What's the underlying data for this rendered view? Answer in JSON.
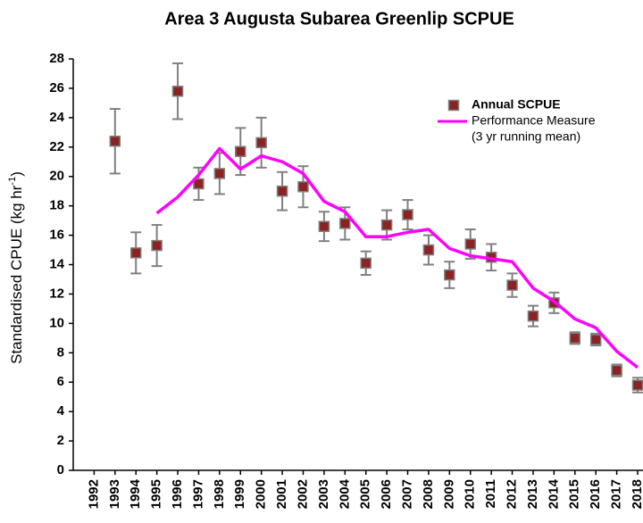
{
  "chart_data": {
    "type": "scatter",
    "title": "Area 3 Augusta Subarea Greenlip SCPUE",
    "y_label": [
      "Standardised CPUE (kg hr",
      "-1",
      ")"
    ],
    "x": [
      1992,
      1993,
      1994,
      1995,
      1996,
      1997,
      1998,
      1999,
      2000,
      2001,
      2002,
      2003,
      2004,
      2005,
      2006,
      2007,
      2008,
      2009,
      2010,
      2011,
      2012,
      2013,
      2014,
      2015,
      2016,
      2017,
      2018
    ],
    "series": [
      {
        "name": "Annual SCPUE",
        "color": "#8b2323",
        "values": [
          null,
          22.4,
          14.8,
          15.3,
          25.8,
          19.5,
          20.2,
          21.7,
          22.3,
          19.0,
          19.3,
          16.6,
          16.8,
          14.1,
          16.7,
          17.4,
          15.0,
          13.3,
          15.4,
          14.5,
          12.6,
          10.5,
          11.4,
          9.0,
          8.9,
          6.8,
          5.8
        ],
        "errors": [
          null,
          2.2,
          1.4,
          1.4,
          1.9,
          1.1,
          1.4,
          1.6,
          1.7,
          1.3,
          1.4,
          1.0,
          1.1,
          0.8,
          1.0,
          1.0,
          1.0,
          0.9,
          1.0,
          0.9,
          0.8,
          0.7,
          0.7,
          0.4,
          0.4,
          0.4,
          0.5
        ],
        "error_color": "#808080"
      },
      {
        "name": "Performance Measure",
        "color": "#ff00ff",
        "style": "line",
        "values": [
          null,
          null,
          null,
          17.5,
          18.6,
          20.1,
          21.9,
          20.5,
          21.4,
          21.0,
          20.2,
          18.3,
          17.6,
          15.9,
          15.9,
          16.2,
          16.4,
          15.1,
          14.6,
          14.4,
          14.2,
          12.4,
          11.5,
          10.3,
          9.7,
          8.1,
          7.0
        ]
      }
    ],
    "legend_note": "(3 yr running mean)",
    "xlim": [
      1991,
      2018
    ],
    "ylim": [
      0,
      28
    ],
    "yticks": [
      0,
      2,
      4,
      6,
      8,
      10,
      12,
      14,
      16,
      18,
      20,
      22,
      24,
      26,
      28
    ],
    "grid": false
  }
}
